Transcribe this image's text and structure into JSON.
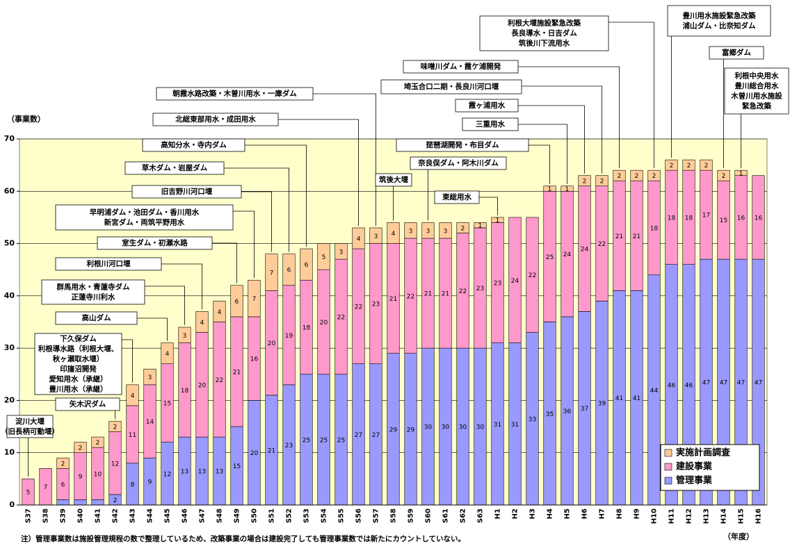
{
  "chart_data": {
    "type": "bar",
    "stacked": true,
    "y_label": "（事業数）",
    "x_unit": "（年度）",
    "note": "注）管理事業数は施設管理規程の数で整理しているため、改築事業の場合は建設完了しても管理事業数では新たにカウントしていない。",
    "categories": [
      "S37",
      "S38",
      "S39",
      "S40",
      "S41",
      "S42",
      "S43",
      "S44",
      "S45",
      "S46",
      "S47",
      "S48",
      "S49",
      "S50",
      "S51",
      "S52",
      "S53",
      "S54",
      "S55",
      "S56",
      "S57",
      "S58",
      "S59",
      "S60",
      "S61",
      "S62",
      "S63",
      "H1",
      "H2",
      "H3",
      "H4",
      "H5",
      "H6",
      "H7",
      "H8",
      "H9",
      "H10",
      "H11",
      "H12",
      "H13",
      "H14",
      "H15",
      "H16"
    ],
    "series": [
      {
        "name": "管理事業",
        "color": "#9999ff",
        "values": [
          0,
          0,
          1,
          1,
          1,
          2,
          8,
          9,
          12,
          13,
          13,
          13,
          15,
          20,
          21,
          23,
          25,
          25,
          25,
          27,
          27,
          29,
          29,
          30,
          30,
          30,
          30,
          31,
          31,
          33,
          35,
          36,
          37,
          39,
          41,
          41,
          44,
          46,
          46,
          47,
          47,
          47,
          47
        ],
        "value_labels": [
          null,
          null,
          null,
          null,
          null,
          2,
          8,
          9,
          12,
          13,
          13,
          13,
          15,
          20,
          21,
          23,
          25,
          25,
          25,
          27,
          27,
          29,
          29,
          30,
          30,
          30,
          30,
          31,
          31,
          33,
          35,
          36,
          37,
          39,
          41,
          41,
          44,
          46,
          46,
          47,
          47,
          47,
          47
        ]
      },
      {
        "name": "建設事業",
        "color": "#ff99cc",
        "values": [
          5,
          7,
          6,
          9,
          10,
          12,
          11,
          14,
          15,
          18,
          20,
          22,
          21,
          16,
          20,
          19,
          18,
          20,
          22,
          22,
          23,
          21,
          22,
          21,
          21,
          22,
          23,
          23,
          24,
          22,
          25,
          24,
          24,
          22,
          21,
          21,
          18,
          18,
          18,
          17,
          15,
          16,
          16
        ]
      },
      {
        "name": "実施計画調査",
        "color": "#ffcc99",
        "values": [
          0,
          0,
          2,
          2,
          2,
          2,
          4,
          3,
          4,
          3,
          4,
          4,
          6,
          7,
          7,
          6,
          6,
          5,
          3,
          4,
          3,
          4,
          3,
          3,
          3,
          2,
          1,
          1,
          0,
          0,
          1,
          1,
          2,
          2,
          2,
          2,
          2,
          2,
          2,
          2,
          2,
          1,
          0
        ],
        "value_labels": [
          null,
          null,
          2,
          2,
          2,
          2,
          4,
          3,
          4,
          3,
          4,
          4,
          6,
          7,
          7,
          6,
          6,
          5,
          3,
          4,
          3,
          4,
          3,
          3,
          3,
          2,
          1,
          1,
          null,
          null,
          1,
          1,
          2,
          2,
          2,
          2,
          2,
          2,
          2,
          2,
          2,
          1,
          null
        ]
      }
    ],
    "ylim": [
      0,
      70
    ],
    "yticks": [
      0,
      10,
      20,
      30,
      40,
      50,
      60,
      70
    ],
    "grid": true,
    "legend": "lower right",
    "annotations": [
      {
        "text": [
          "淀川大堰",
          "（旧長柄可動堰）"
        ],
        "category": "S37"
      },
      {
        "text": [
          "矢木沢ダム"
        ],
        "category": "S42"
      },
      {
        "text": [
          "下久保ダム",
          "利根導水路（利根大堰、",
          "秋ヶ瀬取水堰）",
          "印旛沼開発",
          "愛知用水（承継）",
          "豊川用水（承継）"
        ],
        "category": "S43"
      },
      {
        "text": [
          "高山ダム"
        ],
        "category": "S45"
      },
      {
        "text": [
          "群馬用水・青蓮寺ダム",
          "正蓮寺川利水"
        ],
        "category": "S46"
      },
      {
        "text": [
          "利根川河口堰"
        ],
        "category": "S47"
      },
      {
        "text": [
          "室生ダム・初瀬水路"
        ],
        "category": "S49"
      },
      {
        "text": [
          "早明浦ダム・池田ダム・香川用水",
          "新宮ダム・両筑平野用水"
        ],
        "category": "S50"
      },
      {
        "text": [
          "旧吉野川河口堰"
        ],
        "category": "S51"
      },
      {
        "text": [
          "草木ダム・岩屋ダム"
        ],
        "category": "S52"
      },
      {
        "text": [
          "高知分水・寺内ダム"
        ],
        "category": "S53"
      },
      {
        "text": [
          "北総東部用水・成田用水"
        ],
        "category": "S56"
      },
      {
        "text": [
          "朝霞水路改築・木曽川用水・一庫ダム"
        ],
        "category": "S57"
      },
      {
        "text": [
          "筑後大堰"
        ],
        "category": "S58"
      },
      {
        "text": [
          "奈良俣ダム・阿木川ダム"
        ],
        "category": "S60"
      },
      {
        "text": [
          "東総用水"
        ],
        "category": "H1"
      },
      {
        "text": [
          "琵琶湖開発・布目ダム"
        ],
        "category": "H4"
      },
      {
        "text": [
          "三重用水"
        ],
        "category": "H5"
      },
      {
        "text": [
          "霞ヶ浦用水"
        ],
        "category": "H6"
      },
      {
        "text": [
          "埼玉合口二期・長良川河口堰"
        ],
        "category": "H7"
      },
      {
        "text": [
          "味噌川ダム・霞ケ浦開発"
        ],
        "category": "H8"
      },
      {
        "text": [
          "利根大堰施設緊急改築",
          "長良導水・日吉ダム",
          "筑後川下流用水"
        ],
        "category": "H10"
      },
      {
        "text": [
          "豊川用水施設緊急改築",
          "浦山ダム・比奈知ダム"
        ],
        "category": "H11"
      },
      {
        "text": [
          "富郷ダム"
        ],
        "category": "H14"
      },
      {
        "text": [
          "利根中央用水",
          "豊川総合用水",
          "木曽川用水施設",
          "緊急改築"
        ],
        "category": "H15"
      }
    ]
  }
}
